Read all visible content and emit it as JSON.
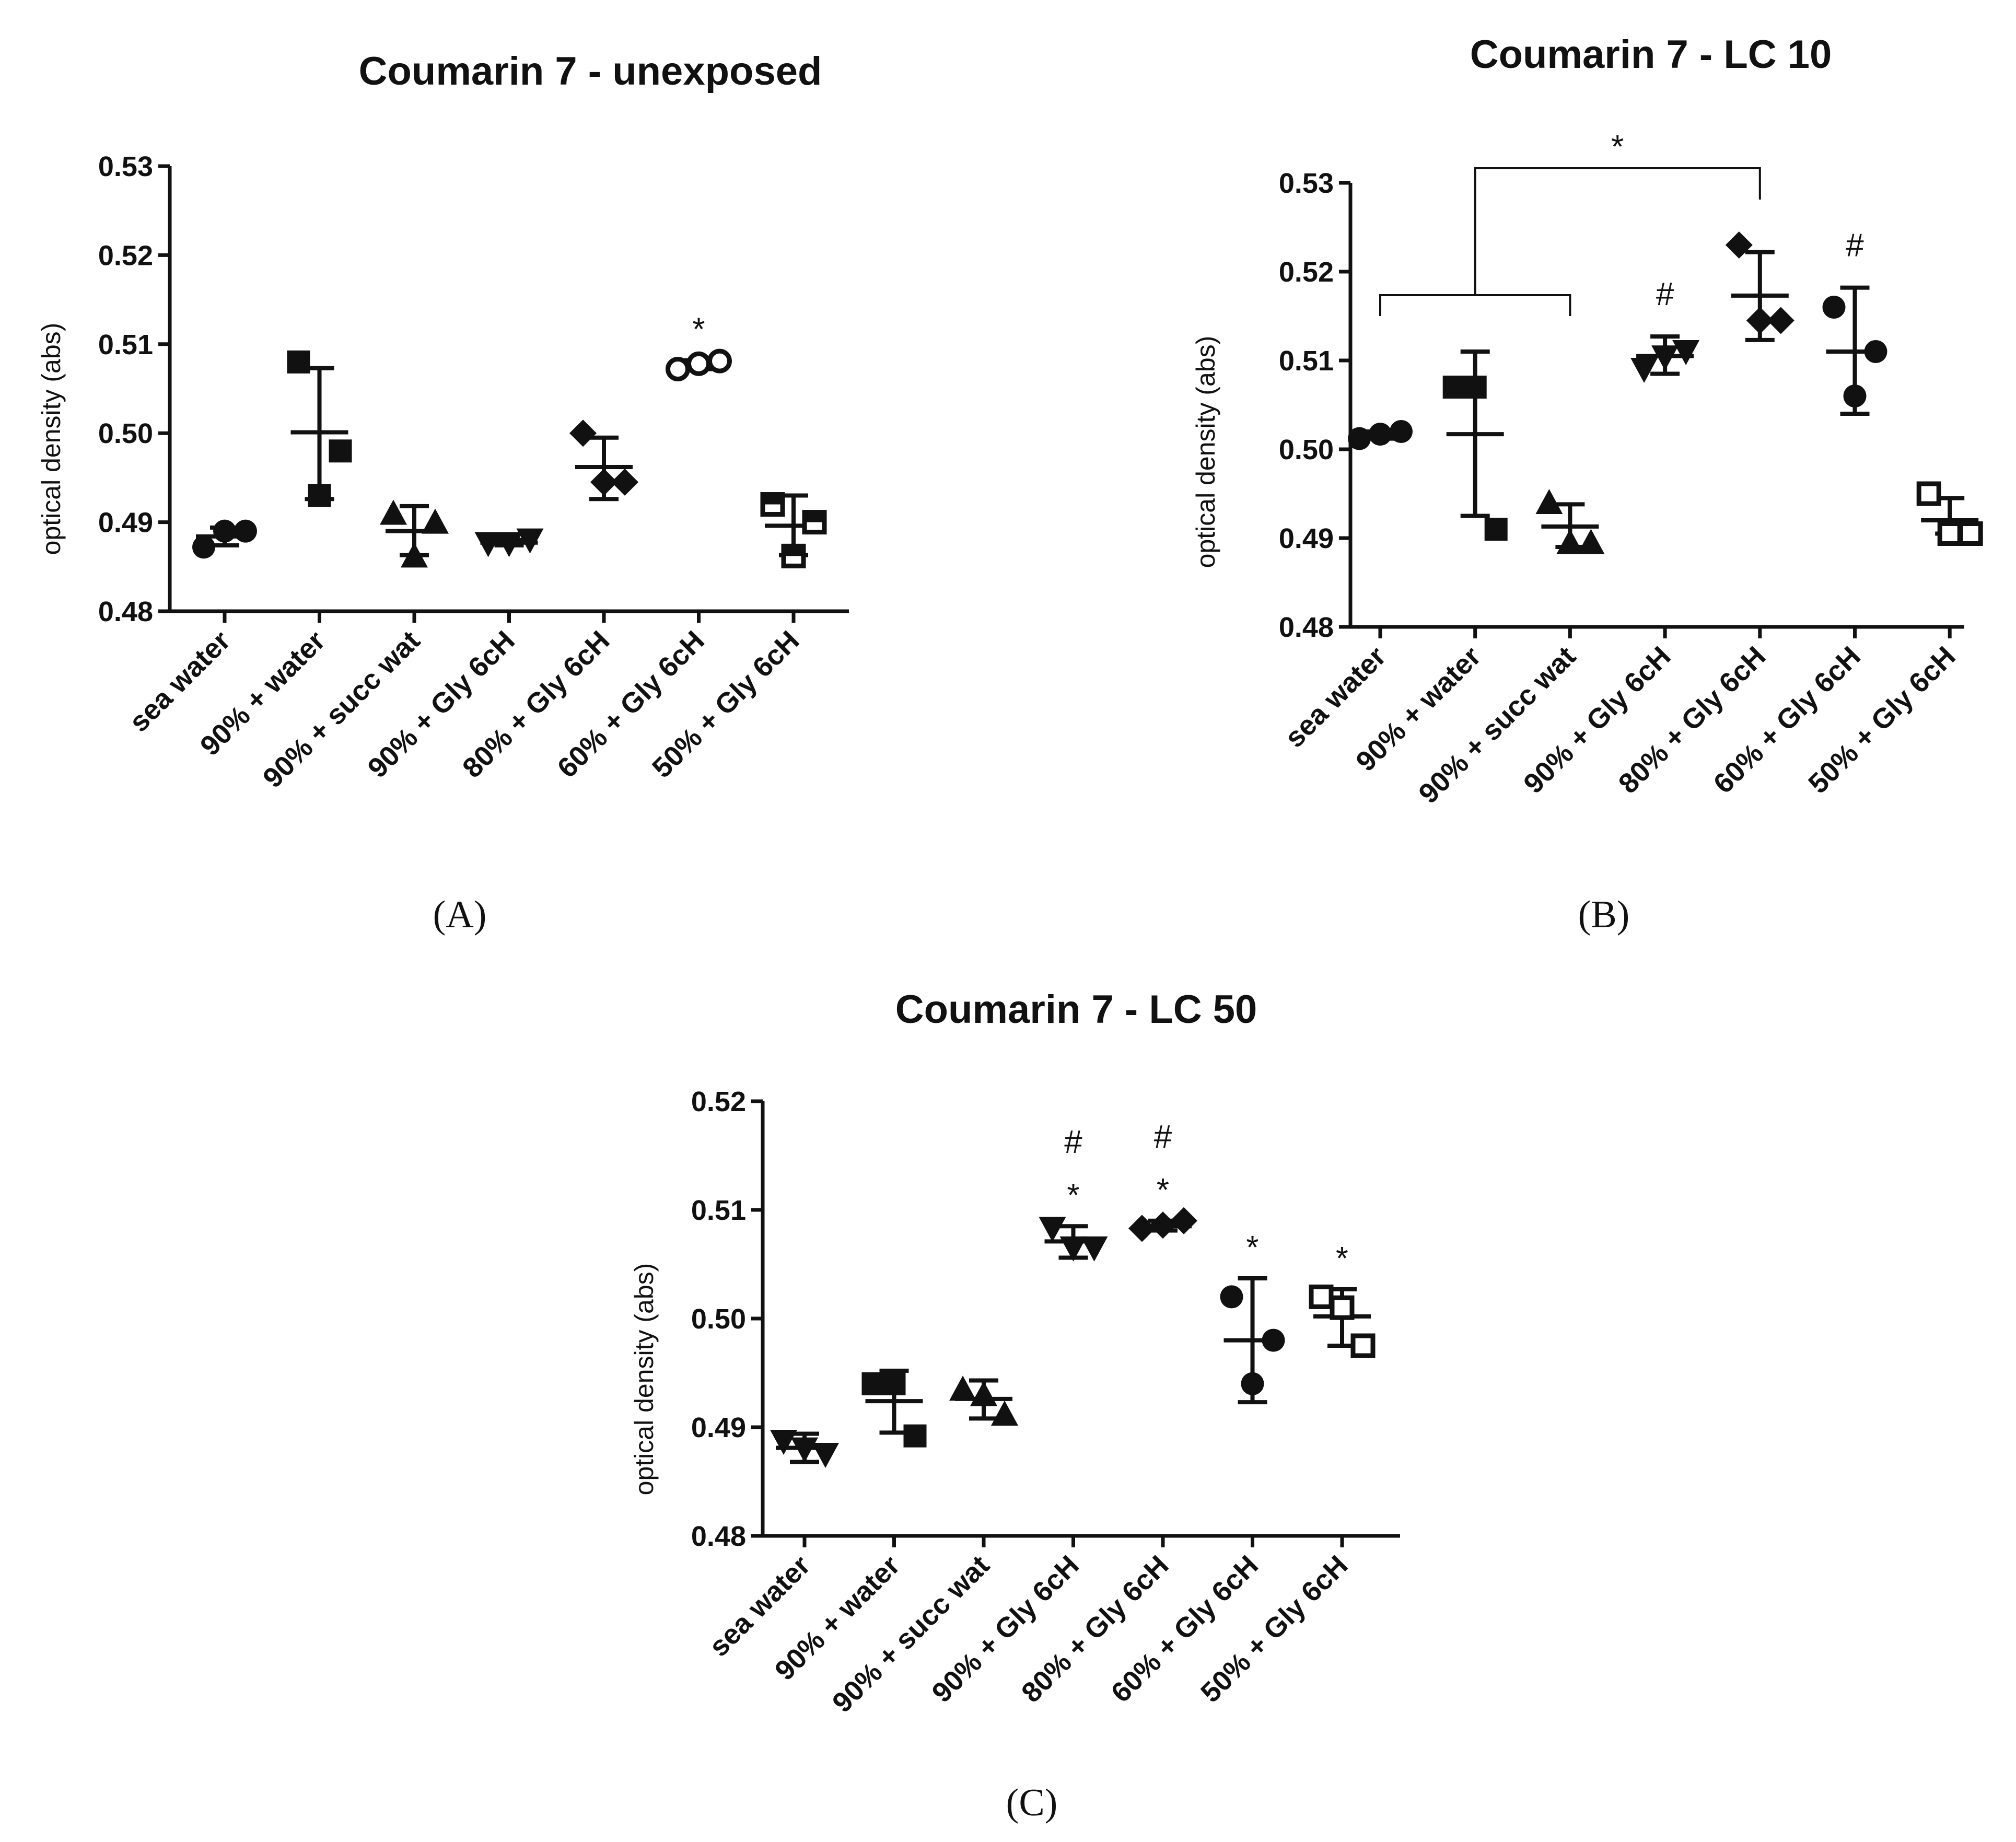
{
  "chart_data": [
    {
      "panel": "(A)",
      "type": "scatter",
      "title": "Coumarin 7 - unexposed",
      "xlabel": "",
      "ylabel": "optical density (abs)",
      "ylim": [
        0.48,
        0.53
      ],
      "yticks": [
        "0.48",
        "0.49",
        "0.50",
        "0.51",
        "0.52",
        "0.53"
      ],
      "categories": [
        "sea water",
        "90% + water",
        "90% + succ wat",
        "90% + Gly 6cH",
        "80% + Gly 6cH",
        "60% + Gly 6cH",
        "50% + Gly 6cH"
      ],
      "groups": [
        {
          "marker": "circle",
          "points": [
            0.4872,
            0.489,
            0.489
          ],
          "mean": 0.4884,
          "sd_low": 0.4874,
          "sd_high": 0.4894,
          "annotations": []
        },
        {
          "marker": "square",
          "points": [
            0.508,
            0.493,
            0.498
          ],
          "mean": 0.5001,
          "sd_low": 0.4926,
          "sd_high": 0.5073,
          "annotations": []
        },
        {
          "marker": "triangle-up",
          "points": [
            0.491,
            0.4862,
            0.49
          ],
          "mean": 0.489,
          "sd_low": 0.4863,
          "sd_high": 0.4918,
          "annotations": []
        },
        {
          "marker": "triangle-down",
          "points": [
            0.4876,
            0.4876,
            0.488
          ],
          "mean": 0.4877,
          "sd_low": 0.4874,
          "sd_high": 0.488,
          "annotations": []
        },
        {
          "marker": "diamond",
          "points": [
            0.5,
            0.4945,
            0.4945
          ],
          "mean": 0.4962,
          "sd_low": 0.4926,
          "sd_high": 0.4995,
          "annotations": []
        },
        {
          "marker": "circle-open",
          "points": [
            0.5072,
            0.5078,
            0.5081
          ],
          "mean": 0.5077,
          "sd_low": 0.5072,
          "sd_high": 0.5082,
          "annotations": [
            "*"
          ]
        },
        {
          "marker": "square-half",
          "points": [
            0.492,
            0.4862,
            0.49
          ],
          "mean": 0.4896,
          "sd_low": 0.4863,
          "sd_high": 0.493,
          "annotations": []
        }
      ]
    },
    {
      "panel": "(B)",
      "type": "scatter",
      "title": "Coumarin 7 - LC 10",
      "xlabel": "",
      "ylabel": "optical density (abs)",
      "ylim": [
        0.48,
        0.53
      ],
      "yticks": [
        "0.48",
        "0.49",
        "0.50",
        "0.51",
        "0.52",
        "0.53"
      ],
      "categories": [
        "sea water",
        "90% + water",
        "90% + succ wat",
        "90% + Gly 6cH",
        "80% + Gly 6cH",
        "60% + Gly 6cH",
        "50% + Gly 6cH"
      ],
      "groups": [
        {
          "marker": "circle",
          "points": [
            0.5012,
            0.5017,
            0.502
          ],
          "mean": 0.5016,
          "sd_low": 0.5012,
          "sd_high": 0.502,
          "annotations": []
        },
        {
          "marker": "square",
          "points": [
            0.507,
            0.507,
            0.491
          ],
          "mean": 0.5017,
          "sd_low": 0.4925,
          "sd_high": 0.511,
          "annotations": []
        },
        {
          "marker": "triangle-up",
          "points": [
            0.494,
            0.4895,
            0.4895
          ],
          "mean": 0.4913,
          "sd_low": 0.489,
          "sd_high": 0.4938,
          "annotations": []
        },
        {
          "marker": "triangle-down",
          "points": [
            0.509,
            0.5104,
            0.511
          ],
          "mean": 0.5105,
          "sd_low": 0.5085,
          "sd_high": 0.5127,
          "annotations": [
            "#"
          ]
        },
        {
          "marker": "diamond",
          "points": [
            0.523,
            0.5145,
            0.5145
          ],
          "mean": 0.5173,
          "sd_low": 0.5123,
          "sd_high": 0.5222,
          "annotations": []
        },
        {
          "marker": "circle",
          "points": [
            0.516,
            0.506,
            0.511
          ],
          "mean": 0.511,
          "sd_low": 0.504,
          "sd_high": 0.5182,
          "annotations": [
            "#"
          ]
        },
        {
          "marker": "square-open",
          "points": [
            0.495,
            0.4905,
            0.4905
          ],
          "mean": 0.492,
          "sd_low": 0.4905,
          "sd_high": 0.4945,
          "annotations": []
        }
      ],
      "bracket": {
        "label": "*",
        "left_from": "sea water",
        "left_to": "90% + succ wat",
        "right": "80% + Gly 6cH"
      }
    },
    {
      "panel": "(C)",
      "type": "scatter",
      "title": "Coumarin 7 - LC 50",
      "xlabel": "",
      "ylabel": "optical density (abs)",
      "ylim": [
        0.48,
        0.52
      ],
      "yticks": [
        "0.48",
        "0.49",
        "0.50",
        "0.51",
        "0.52"
      ],
      "categories": [
        "sea water",
        "90% + water",
        "90% + succ wat",
        "90% + Gly 6cH",
        "80% + Gly 6cH",
        "60% + Gly 6cH",
        "50% + Gly 6cH"
      ],
      "groups": [
        {
          "marker": "triangle-down",
          "points": [
            0.4887,
            0.488,
            0.4875
          ],
          "mean": 0.4881,
          "sd_low": 0.4868,
          "sd_high": 0.4894,
          "annotations": []
        },
        {
          "marker": "square",
          "points": [
            0.494,
            0.494,
            0.4892
          ],
          "mean": 0.4924,
          "sd_low": 0.4895,
          "sd_high": 0.4952,
          "annotations": []
        },
        {
          "marker": "triangle-up",
          "points": [
            0.4935,
            0.493,
            0.4912
          ],
          "mean": 0.4926,
          "sd_low": 0.4908,
          "sd_high": 0.4943,
          "annotations": []
        },
        {
          "marker": "triangle-down",
          "points": [
            0.5083,
            0.5065,
            0.5065
          ],
          "mean": 0.5071,
          "sd_low": 0.5056,
          "sd_high": 0.5085,
          "annotations": [
            "*",
            "#"
          ]
        },
        {
          "marker": "diamond",
          "points": [
            0.5083,
            0.5086,
            0.509
          ],
          "mean": 0.5085,
          "sd_low": 0.5081,
          "sd_high": 0.509,
          "annotations": [
            "*",
            "#"
          ]
        },
        {
          "marker": "circle",
          "points": [
            0.502,
            0.494,
            0.498
          ],
          "mean": 0.498,
          "sd_low": 0.4923,
          "sd_high": 0.5037,
          "annotations": [
            "*"
          ]
        },
        {
          "marker": "square-open",
          "points": [
            0.502,
            0.501,
            0.4975
          ],
          "mean": 0.5002,
          "sd_low": 0.4975,
          "sd_high": 0.5027,
          "annotations": [
            "*"
          ]
        }
      ]
    }
  ]
}
